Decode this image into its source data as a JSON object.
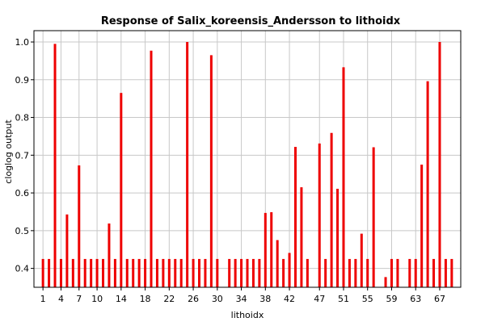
{
  "chart_data": {
    "type": "bar",
    "title": "Response of Salix_koreensis_Andersson to lithoidx",
    "xlabel": "lithoidx",
    "ylabel": "cloglog output",
    "ylim": [
      0.35,
      1.03
    ],
    "xlim": [
      -0.5,
      70.5
    ],
    "grid": true,
    "bar_color": "#ee0000",
    "x_ticks": [
      1,
      4,
      7,
      10,
      14,
      18,
      22,
      26,
      30,
      34,
      38,
      42,
      47,
      51,
      55,
      59,
      63,
      67
    ],
    "y_ticks": [
      0.4,
      0.5,
      0.6,
      0.7,
      0.8,
      0.9,
      1.0
    ],
    "y_tick_labels": [
      "0.4",
      "0.5",
      "0.6",
      "0.7",
      "0.8",
      "0.9",
      "1.0"
    ],
    "categories": [
      1,
      2,
      3,
      4,
      5,
      6,
      7,
      8,
      9,
      10,
      11,
      12,
      13,
      14,
      15,
      16,
      17,
      18,
      19,
      20,
      21,
      22,
      23,
      24,
      25,
      26,
      27,
      28,
      29,
      30,
      31,
      32,
      33,
      34,
      35,
      36,
      37,
      38,
      39,
      40,
      41,
      42,
      43,
      44,
      45,
      46,
      47,
      48,
      49,
      50,
      51,
      52,
      53,
      54,
      55,
      56,
      57,
      58,
      59,
      60,
      61,
      62,
      63,
      64,
      65,
      66,
      67,
      68,
      69
    ],
    "values": [
      0.425,
      0.425,
      0.995,
      0.425,
      0.543,
      0.425,
      0.673,
      0.425,
      0.425,
      0.425,
      0.425,
      0.519,
      0.425,
      0.865,
      0.425,
      0.425,
      0.425,
      0.425,
      0.977,
      0.425,
      0.425,
      0.425,
      0.425,
      0.425,
      1.0,
      0.425,
      0.425,
      0.425,
      0.965,
      0.425,
      null,
      0.425,
      0.425,
      0.425,
      0.425,
      0.425,
      0.425,
      0.547,
      0.549,
      0.475,
      0.425,
      0.441,
      0.722,
      0.615,
      0.425,
      null,
      0.731,
      0.425,
      0.759,
      0.611,
      0.933,
      0.425,
      0.425,
      0.492,
      0.425,
      0.721,
      null,
      0.377,
      0.425,
      0.425,
      null,
      0.425,
      0.425,
      0.675,
      0.896,
      0.425,
      1.0,
      0.425,
      0.425
    ]
  }
}
